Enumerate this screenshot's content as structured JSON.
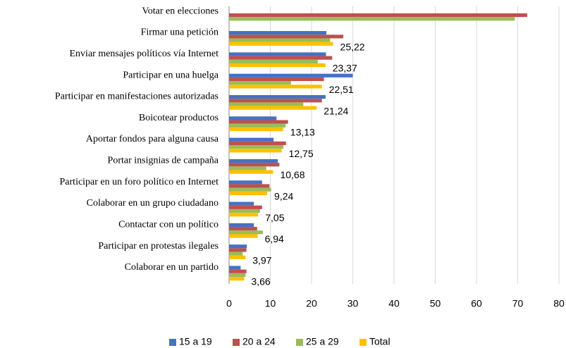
{
  "chart_data": {
    "type": "bar",
    "orientation": "horizontal",
    "categories": [
      "Votar en elecciones",
      "Firmar una petición",
      "Enviar mensajes políticos vía Internet",
      "Participar en una huelga",
      "Participar en manifestaciones autorizadas",
      "Boicotear productos",
      "Aportar fondos para alguna causa",
      "Portar insignias de campaña",
      "Participar en un foro político en Internet",
      "Colaborar en un grupo ciudadano",
      "Contactar con un político",
      "Participar en protestas ilegales",
      "Colaborar en un partido"
    ],
    "series": [
      {
        "name": "15 a 19",
        "color": "#4472c4",
        "values": [
          null,
          23.6,
          23.5,
          30,
          23.4,
          11.5,
          10.8,
          11.8,
          8,
          6,
          6,
          4.3,
          2.8
        ]
      },
      {
        "name": "20 a 24",
        "color": "#c0504d",
        "values": [
          72.3,
          27.7,
          25,
          23,
          22.5,
          14.3,
          13.8,
          12.2,
          9.8,
          8,
          6.8,
          4.2,
          4.2
        ]
      },
      {
        "name": "25 a 29",
        "color": "#9bbb59",
        "values": [
          69.3,
          24.5,
          21.5,
          15,
          18,
          13.7,
          13.2,
          9,
          10.2,
          7.5,
          8.2,
          3.3,
          4
        ]
      },
      {
        "name": "Total",
        "color": "#ffc000",
        "values": [
          null,
          25.22,
          23.37,
          22.51,
          21.24,
          13.13,
          12.75,
          10.68,
          9.24,
          7.05,
          6.94,
          3.97,
          3.66
        ],
        "value_labels": [
          null,
          "25,22",
          "23,37",
          "22,51",
          "21,24",
          "13,13",
          "12,75",
          "10,68",
          "9,24",
          "7,05",
          "6,94",
          "3,97",
          "3,66"
        ]
      }
    ],
    "xlim": [
      0,
      80
    ],
    "xticks": [
      0,
      10,
      20,
      30,
      40,
      50,
      60,
      70,
      80
    ],
    "grid": true,
    "legend": "bottom"
  }
}
